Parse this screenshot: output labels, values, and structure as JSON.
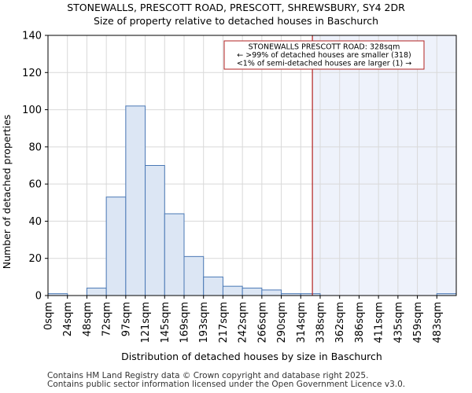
{
  "chart_data": {
    "type": "bar",
    "title": "STONEWALLS, PRESCOTT ROAD, PRESCOTT, SHREWSBURY, SY4 2DR",
    "subtitle": "Size of property relative to detached houses in Baschurch",
    "xlabel": "Distribution of detached houses by size in Baschurch",
    "ylabel": "Number of detached properties",
    "ylim": [
      0,
      140
    ],
    "yticks": [
      0,
      20,
      40,
      60,
      80,
      100,
      120,
      140
    ],
    "categories": [
      "0sqm",
      "24sqm",
      "48sqm",
      "72sqm",
      "97sqm",
      "121sqm",
      "145sqm",
      "169sqm",
      "193sqm",
      "217sqm",
      "242sqm",
      "266sqm",
      "290sqm",
      "314sqm",
      "338sqm",
      "362sqm",
      "386sqm",
      "411sqm",
      "435sqm",
      "459sqm",
      "483sqm"
    ],
    "values": [
      1,
      0,
      4,
      53,
      102,
      70,
      44,
      21,
      10,
      5,
      4,
      3,
      1,
      1,
      0,
      0,
      0,
      0,
      0,
      0,
      1
    ],
    "bar_values_note": "values correspond to bins starting at each category",
    "marker": {
      "value_index": 13.6,
      "label_lines": [
        "STONEWALLS PRESCOTT ROAD: 328sqm",
        "← >99% of detached houses are smaller (318)",
        "<1% of semi-detached houses are larger (1) →"
      ]
    },
    "grid": true,
    "colors": {
      "bar_fill": "#dce6f4",
      "bar_stroke": "#4a78b5",
      "grid": "#d9d9d9",
      "marker": "#b22222",
      "highlight": "#eef2fb"
    }
  },
  "footer": {
    "line1": "Contains HM Land Registry data © Crown copyright and database right 2025.",
    "line2": "Contains public sector information licensed under the Open Government Licence v3.0."
  }
}
